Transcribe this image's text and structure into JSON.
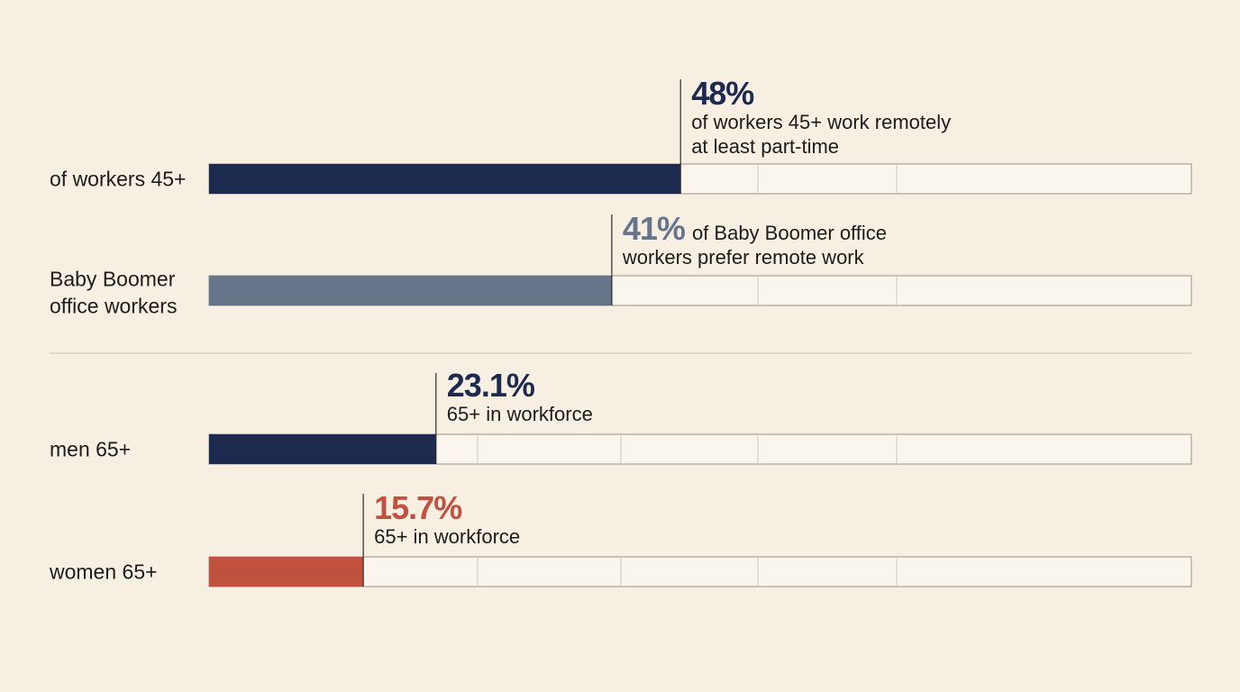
{
  "chart_data": {
    "type": "bar",
    "orientation": "horizontal",
    "xlim": [
      0,
      100
    ],
    "grid": true,
    "rows": [
      {
        "label_lines": [
          "of workers 45+"
        ],
        "value": 48,
        "value_text": "48%",
        "caption_lines": [
          "of workers 45+ work remotely",
          "at least part-time"
        ],
        "color": "#1b2a4e",
        "value_color": "#1b2a4e",
        "group": 1
      },
      {
        "label_lines": [
          "Baby Boomer",
          "office workers"
        ],
        "value": 41,
        "value_text": "41%",
        "caption_lines": [
          "of Baby Boomer office",
          "workers prefer remote work"
        ],
        "color": "#66758a",
        "value_color": "#66758a",
        "group": 1
      },
      {
        "label_lines": [
          "men 65+"
        ],
        "value": 23.1,
        "value_text": "23.1%",
        "caption_lines": [
          "65+ in workforce"
        ],
        "color": "#1b2a4e",
        "value_color": "#1b2a4e",
        "group": 2
      },
      {
        "label_lines": [
          "women 65+"
        ],
        "value": 15.7,
        "value_text": "15.7%",
        "caption_lines": [
          "65+ in workforce"
        ],
        "color": "#c0513f",
        "value_color": "#c0513f",
        "group": 2
      }
    ]
  }
}
